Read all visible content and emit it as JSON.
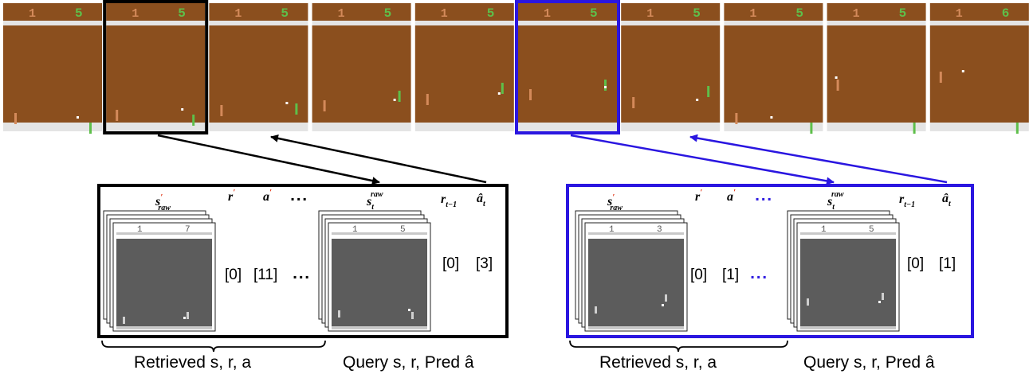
{
  "colors": {
    "court": "#8b4f1e",
    "score_bar": "#8b4f1e",
    "white_bar": "#e4e4e4",
    "paddle_left": "#d48a5a",
    "paddle_right": "#5ebf4a",
    "score_digit": "#5ebf4a",
    "black_accent": "#000000",
    "blue_accent": "#2a16e0",
    "prime_red": "#e03010",
    "mini_bg": "#5c5c5c",
    "mini_bar": "#c8c8c8"
  },
  "film_strip": {
    "frames": [
      {
        "left_score": "1",
        "right_score": "5",
        "highlight": "none"
      },
      {
        "left_score": "1",
        "right_score": "5",
        "highlight": "black"
      },
      {
        "left_score": "1",
        "right_score": "5",
        "highlight": "none"
      },
      {
        "left_score": "1",
        "right_score": "5",
        "highlight": "none"
      },
      {
        "left_score": "1",
        "right_score": "5",
        "highlight": "none"
      },
      {
        "left_score": "1",
        "right_score": "5",
        "highlight": "blue"
      },
      {
        "left_score": "1",
        "right_score": "5",
        "highlight": "none"
      },
      {
        "left_score": "1",
        "right_score": "5",
        "highlight": "none"
      },
      {
        "left_score": "1",
        "right_score": "5",
        "highlight": "none"
      },
      {
        "left_score": "1",
        "right_score": "6",
        "highlight": "none"
      }
    ]
  },
  "panels": [
    {
      "accent": "black",
      "retrieved_frame_score": "1 7",
      "query_frame_score": "1 5",
      "retrieved_reward": "[0]",
      "retrieved_action": "[11]",
      "query_reward": "[0]",
      "predicted_action": "[3]",
      "brace_left_label": "Retrieved s, r, a",
      "brace_right_label": "Query s, r, Pred â"
    },
    {
      "accent": "blue",
      "retrieved_frame_score": "1 3",
      "query_frame_score": "1 5",
      "retrieved_reward": "[0]",
      "retrieved_action": "[1]",
      "query_reward": "[0]",
      "predicted_action": "[1]",
      "brace_left_label": "Retrieved s, r, a",
      "brace_right_label": "Query s, r, Pred â"
    }
  ],
  "header_labels": {
    "s_retrieved": "s",
    "s_retrieved_sup": "′",
    "s_retrieved_sub": "raw",
    "r_retrieved": "r",
    "r_retrieved_sup": "′",
    "a_retrieved": "a",
    "a_retrieved_sup": "′",
    "ellipsis": "▪ ▪ ▪",
    "s_query": "s",
    "s_query_sub": "t",
    "s_query_sup": "raw",
    "r_query": "r",
    "r_query_sub": "t−1",
    "a_pred": "â",
    "a_pred_sub": "t"
  }
}
